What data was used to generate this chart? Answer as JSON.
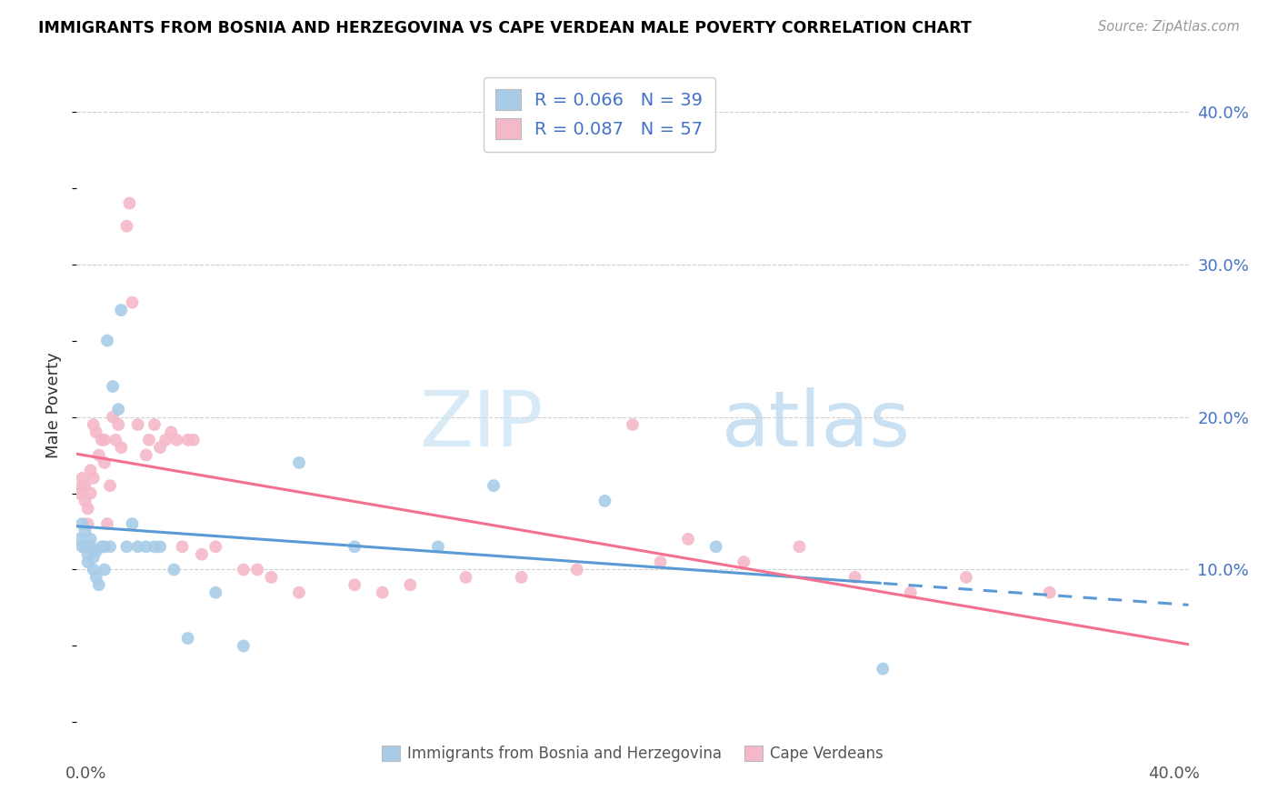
{
  "title": "IMMIGRANTS FROM BOSNIA AND HERZEGOVINA VS CAPE VERDEAN MALE POVERTY CORRELATION CHART",
  "source": "Source: ZipAtlas.com",
  "ylabel": "Male Poverty",
  "right_yticks": [
    "10.0%",
    "20.0%",
    "30.0%",
    "40.0%"
  ],
  "right_ytick_vals": [
    0.1,
    0.2,
    0.3,
    0.4
  ],
  "xlim": [
    0.0,
    0.4
  ],
  "ylim": [
    -0.005,
    0.42
  ],
  "blue_color": "#a8cce8",
  "pink_color": "#f4b8c8",
  "blue_line_color": "#5b9bd5",
  "pink_line_color": "#f47090",
  "watermark_zip": "ZIP",
  "watermark_atlas": "atlas",
  "legend_entries": [
    {
      "label": "R = 0.066   N = 39",
      "color": "#a8cce8"
    },
    {
      "label": "R = 0.087   N = 57",
      "color": "#f4b8c8"
    }
  ],
  "bottom_legend": [
    {
      "label": "Immigrants from Bosnia and Herzegovina",
      "color": "#a8cce8"
    },
    {
      "label": "Cape Verdeans",
      "color": "#f4b8c8"
    }
  ],
  "bosnia_x": [
    0.001,
    0.002,
    0.002,
    0.003,
    0.003,
    0.004,
    0.004,
    0.005,
    0.005,
    0.006,
    0.006,
    0.007,
    0.007,
    0.008,
    0.009,
    0.01,
    0.01,
    0.011,
    0.012,
    0.013,
    0.015,
    0.016,
    0.018,
    0.02,
    0.022,
    0.025,
    0.028,
    0.03,
    0.035,
    0.04,
    0.05,
    0.06,
    0.08,
    0.1,
    0.13,
    0.15,
    0.19,
    0.23,
    0.29
  ],
  "bosnia_y": [
    0.12,
    0.115,
    0.13,
    0.125,
    0.115,
    0.11,
    0.105,
    0.115,
    0.12,
    0.1,
    0.108,
    0.095,
    0.112,
    0.09,
    0.115,
    0.1,
    0.115,
    0.25,
    0.115,
    0.22,
    0.205,
    0.27,
    0.115,
    0.13,
    0.115,
    0.115,
    0.115,
    0.115,
    0.1,
    0.055,
    0.085,
    0.05,
    0.17,
    0.115,
    0.115,
    0.155,
    0.145,
    0.115,
    0.035
  ],
  "verde_x": [
    0.001,
    0.002,
    0.002,
    0.003,
    0.003,
    0.004,
    0.004,
    0.005,
    0.005,
    0.006,
    0.006,
    0.007,
    0.008,
    0.009,
    0.01,
    0.01,
    0.011,
    0.012,
    0.013,
    0.014,
    0.015,
    0.016,
    0.018,
    0.019,
    0.02,
    0.022,
    0.025,
    0.026,
    0.028,
    0.03,
    0.032,
    0.034,
    0.036,
    0.038,
    0.04,
    0.042,
    0.045,
    0.05,
    0.06,
    0.065,
    0.07,
    0.08,
    0.1,
    0.11,
    0.12,
    0.14,
    0.16,
    0.18,
    0.2,
    0.21,
    0.22,
    0.24,
    0.26,
    0.28,
    0.3,
    0.32,
    0.35
  ],
  "verde_y": [
    0.15,
    0.155,
    0.16,
    0.145,
    0.155,
    0.13,
    0.14,
    0.15,
    0.165,
    0.16,
    0.195,
    0.19,
    0.175,
    0.185,
    0.17,
    0.185,
    0.13,
    0.155,
    0.2,
    0.185,
    0.195,
    0.18,
    0.325,
    0.34,
    0.275,
    0.195,
    0.175,
    0.185,
    0.195,
    0.18,
    0.185,
    0.19,
    0.185,
    0.115,
    0.185,
    0.185,
    0.11,
    0.115,
    0.1,
    0.1,
    0.095,
    0.085,
    0.09,
    0.085,
    0.09,
    0.095,
    0.095,
    0.1,
    0.195,
    0.105,
    0.12,
    0.105,
    0.115,
    0.095,
    0.085,
    0.095,
    0.085
  ]
}
